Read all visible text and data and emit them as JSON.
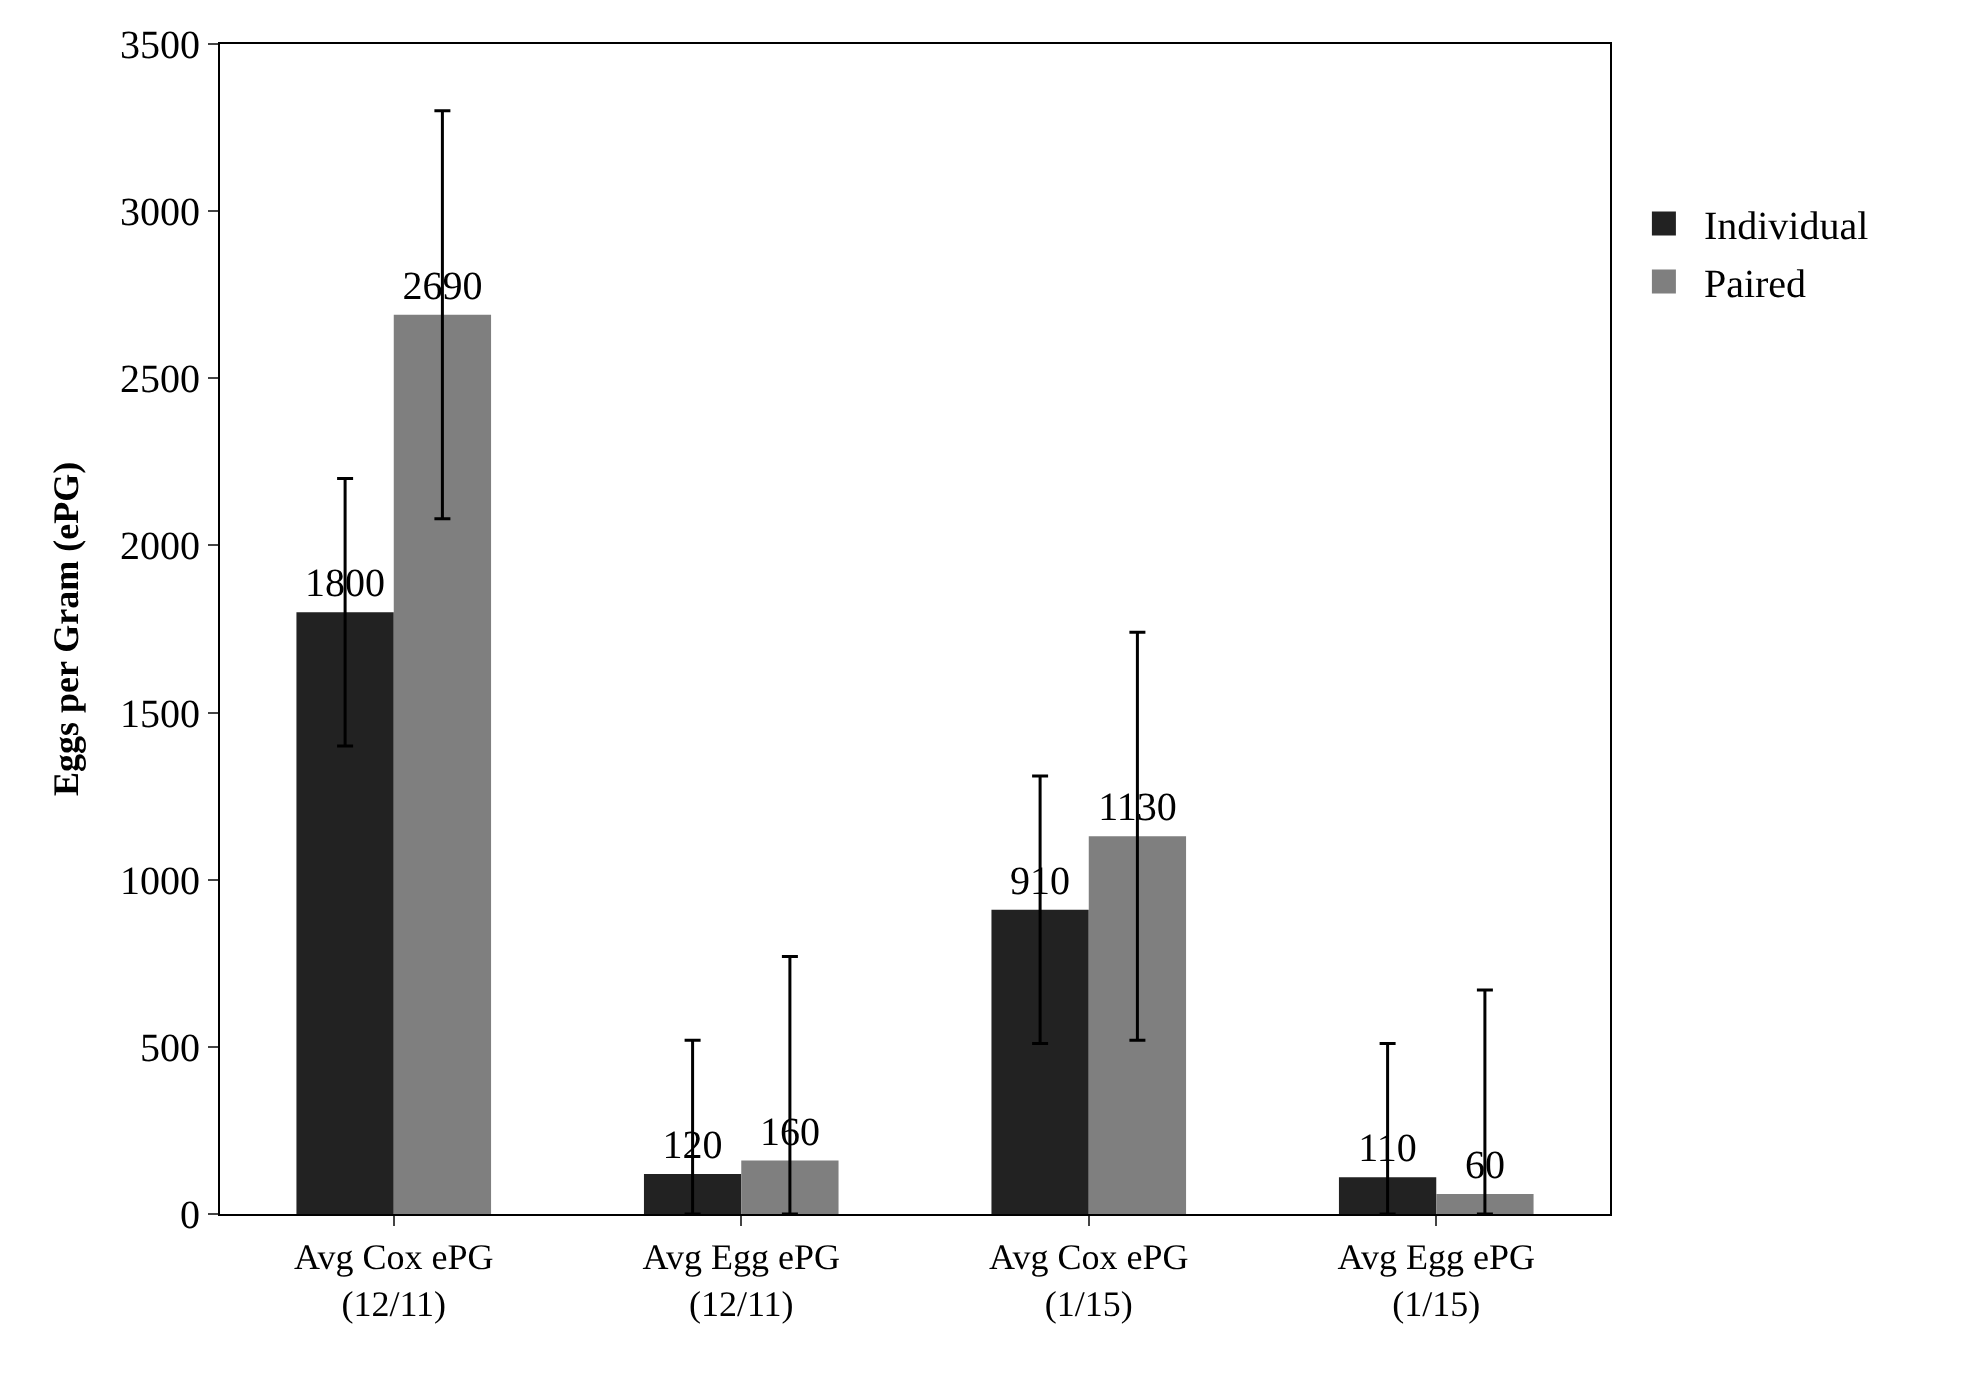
{
  "chart_data": {
    "type": "bar",
    "ylabel": "Eggs per Gram (ePG)",
    "categories": [
      "Avg Cox ePG\n(12/11)",
      "Avg Egg ePG\n(12/11)",
      "Avg Cox ePG\n(1/15)",
      "Avg Egg ePG\n(1/15)"
    ],
    "series": [
      {
        "name": "Individual",
        "color": "#222222",
        "values": [
          1800,
          120,
          910,
          110
        ],
        "errors": [
          400,
          [
            0,
            520
          ],
          400,
          [
            0,
            510
          ]
        ]
      },
      {
        "name": "Paired",
        "color": "#7f7f7f",
        "values": [
          2690,
          160,
          1130,
          60
        ],
        "errors": [
          610,
          [
            0,
            770
          ],
          610,
          [
            0,
            670
          ]
        ]
      }
    ],
    "ylim": [
      0,
      3500
    ],
    "yticks": [
      0,
      500,
      1000,
      1500,
      2000,
      2500,
      3000,
      3500
    ],
    "data_labels": true,
    "legend": "right"
  }
}
